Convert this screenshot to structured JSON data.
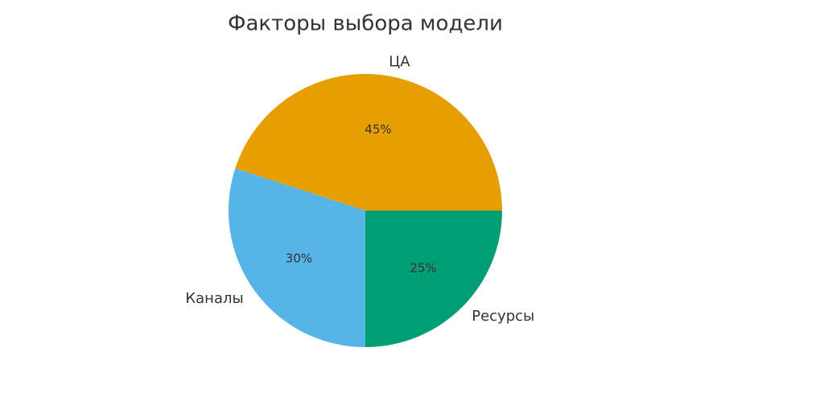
{
  "chart_data": {
    "type": "pie",
    "title": "Факторы выбора модели",
    "categories": [
      "ЦА",
      "Каналы",
      "Ресурсы"
    ],
    "values": [
      45,
      30,
      25
    ],
    "value_labels": [
      "45%",
      "30%",
      "25%"
    ],
    "colors": [
      "#E69F00",
      "#56B4E9",
      "#009E73"
    ]
  }
}
